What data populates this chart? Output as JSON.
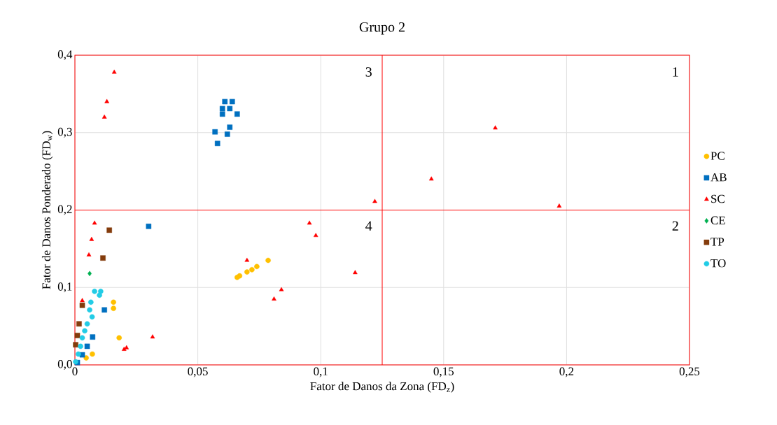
{
  "chart_data": {
    "type": "scatter",
    "title": "Grupo 2",
    "xlabel": "Fator de Danos da Zona (FD$_{z}$)",
    "ylabel": "Fator de Danos Ponderado (FD$_{w}$)",
    "xlim": [
      0,
      0.25
    ],
    "ylim": [
      0,
      0.4
    ],
    "xticks": [
      {
        "value": 0,
        "label": "0"
      },
      {
        "value": 0.05,
        "label": "0,05"
      },
      {
        "value": 0.1,
        "label": "0,1"
      },
      {
        "value": 0.15,
        "label": "0,15"
      },
      {
        "value": 0.2,
        "label": "0,2"
      },
      {
        "value": 0.25,
        "label": "0,25"
      }
    ],
    "yticks": [
      {
        "value": 0,
        "label": "0,0"
      },
      {
        "value": 0.1,
        "label": "0,1"
      },
      {
        "value": 0.2,
        "label": "0,2"
      },
      {
        "value": 0.3,
        "label": "0,3"
      },
      {
        "value": 0.4,
        "label": "0,4"
      }
    ],
    "grid": true,
    "legend": "right",
    "ref_lines": [
      {
        "axis": "x",
        "value": 0.125,
        "color": "#ff0000"
      },
      {
        "axis": "y",
        "value": 0.2,
        "color": "#ff0000"
      }
    ],
    "annotations": [
      "3",
      "1",
      "4",
      "2"
    ],
    "series": [
      {
        "name": "PC",
        "color": "#ffc000",
        "marker": "circle",
        "x": [
          0.0786,
          0.074,
          0.072,
          0.07,
          0.067,
          0.066,
          0.0157,
          0.0157,
          0.018,
          0.0071,
          0.0046
        ],
        "values": [
          0.135,
          0.127,
          0.123,
          0.12,
          0.115,
          0.113,
          0.081,
          0.073,
          0.035,
          0.014,
          0.009
        ]
      },
      {
        "name": "AB",
        "color": "#0070c0",
        "marker": "square",
        "x": [
          0.061,
          0.064,
          0.06,
          0.063,
          0.066,
          0.06,
          0.063,
          0.057,
          0.062,
          0.058,
          0.03,
          0.012,
          0.0072,
          0.005,
          0.003,
          0.001
        ],
        "values": [
          0.34,
          0.34,
          0.331,
          0.331,
          0.324,
          0.324,
          0.307,
          0.301,
          0.298,
          0.286,
          0.179,
          0.071,
          0.036,
          0.024,
          0.013,
          0.003
        ]
      },
      {
        "name": "SC",
        "color": "#ff0000",
        "marker": "triangle",
        "x": [
          0.016,
          0.013,
          0.012,
          0.145,
          0.171,
          0.197,
          0.122,
          0.0954,
          0.098,
          0.114,
          0.07,
          0.084,
          0.081,
          0.008,
          0.0068,
          0.0057,
          0.0316,
          0.021,
          0.02,
          0.003
        ],
        "values": [
          0.378,
          0.34,
          0.32,
          0.24,
          0.306,
          0.205,
          0.211,
          0.183,
          0.167,
          0.119,
          0.135,
          0.097,
          0.085,
          0.183,
          0.162,
          0.142,
          0.036,
          0.022,
          0.02,
          0.083
        ]
      },
      {
        "name": "CE",
        "color": "#00b050",
        "marker": "diamond",
        "x": [
          0.006
        ],
        "values": [
          0.118
        ]
      },
      {
        "name": "TP",
        "color": "#843c0c",
        "marker": "square",
        "x": [
          0.014,
          0.0114,
          0.003,
          0.0017,
          0.001,
          0.0003
        ],
        "values": [
          0.174,
          0.138,
          0.077,
          0.053,
          0.038,
          0.026
        ]
      },
      {
        "name": "TO",
        "color": "#22cce6",
        "marker": "circle",
        "x": [
          0.008,
          0.0105,
          0.01,
          0.0065,
          0.006,
          0.007,
          0.005,
          0.004,
          0.003,
          0.0023,
          0.0014,
          0.0003
        ],
        "values": [
          0.095,
          0.095,
          0.09,
          0.081,
          0.071,
          0.062,
          0.053,
          0.044,
          0.035,
          0.024,
          0.014,
          0.004
        ]
      }
    ]
  }
}
